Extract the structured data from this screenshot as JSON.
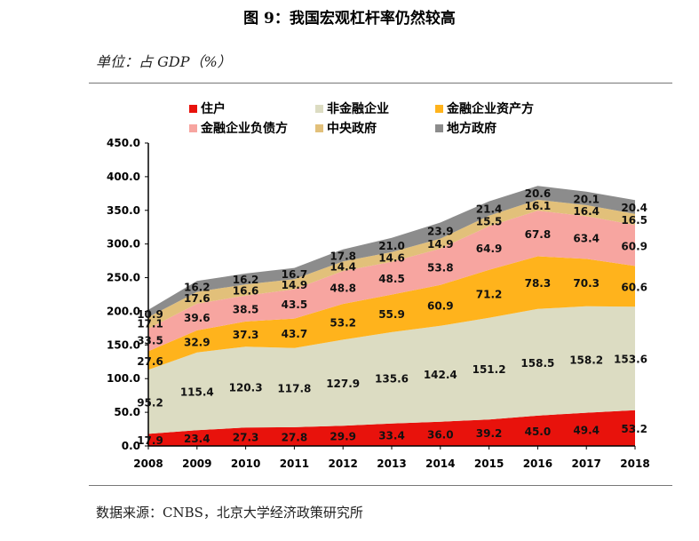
{
  "figure_title": "图 9：我国宏观杠杆率仍然较高",
  "unit_label": "单位：占 GDP（%）",
  "source_label": "数据来源：CNBS，北京大学经济政策研究所",
  "colors": {
    "households": "#e8120c",
    "nonfinancial_corporates": "#dcdcc2",
    "financial_assets": "#ffb31c",
    "financial_liabilities": "#f7a5a0",
    "central_gov": "#e2c07a",
    "local_gov": "#8c8c8c"
  },
  "chart_data": {
    "type": "area",
    "stacked": true,
    "title": "图 9：我国宏观杠杆率仍然较高",
    "ylabel": "单位：占 GDP（%）",
    "xlabel": "",
    "ylim": [
      0,
      450
    ],
    "yticks": [
      "0.0",
      "50.0",
      "100.0",
      "150.0",
      "200.0",
      "250.0",
      "300.0",
      "350.0",
      "400.0",
      "450.0"
    ],
    "x": [
      "2008",
      "2009",
      "2010",
      "2011",
      "2012",
      "2013",
      "2014",
      "2015",
      "2016",
      "2017",
      "2018"
    ],
    "legend_position": "top",
    "series": [
      {
        "name": "住户",
        "key": "households",
        "values": [
          17.9,
          23.4,
          27.3,
          27.8,
          29.9,
          33.4,
          36.0,
          39.2,
          45.0,
          49.4,
          53.2
        ],
        "labels": [
          "17.9",
          "23.4",
          "27.3",
          "27.8",
          "29.9",
          "33.4",
          "36.0",
          "39.2",
          "45.0",
          "49.4",
          "53.2"
        ]
      },
      {
        "name": "非金融企业",
        "key": "nonfinancial_corporates",
        "values": [
          95.2,
          115.4,
          120.3,
          117.8,
          127.9,
          135.6,
          142.4,
          151.2,
          158.5,
          158.2,
          153.6
        ],
        "labels": [
          "95.2",
          "115.4",
          "120.3",
          "117.8",
          "127.9",
          "135.6",
          "142.4",
          "151.2",
          "158.5",
          "158.2",
          "153.6"
        ]
      },
      {
        "name": "金融企业资产方",
        "key": "financial_assets",
        "values": [
          27.6,
          32.9,
          37.3,
          43.7,
          53.2,
          55.9,
          60.9,
          71.2,
          78.3,
          70.3,
          60.6
        ],
        "labels": [
          "27.6",
          "32.9",
          "37.3",
          "43.7",
          "53.2",
          "55.9",
          "60.9",
          "71.2",
          "78.3",
          "70.3",
          "60.6"
        ]
      },
      {
        "name": "金融企业负债方",
        "key": "financial_liabilities",
        "values": [
          33.5,
          39.6,
          38.5,
          43.5,
          48.8,
          48.5,
          53.8,
          64.9,
          67.8,
          63.4,
          60.9
        ],
        "labels": [
          "33.5",
          "39.6",
          "38.5",
          "43.5",
          "48.8",
          "48.5",
          "53.8",
          "64.9",
          "67.8",
          "63.4",
          "60.9"
        ]
      },
      {
        "name": "中央政府",
        "key": "central_gov",
        "values": [
          17.1,
          17.6,
          16.6,
          14.9,
          14.4,
          14.6,
          14.9,
          15.5,
          16.1,
          16.4,
          16.5
        ],
        "labels": [
          "17.1",
          "17.6",
          "16.6",
          "14.9",
          "14.4",
          "14.6",
          "14.9",
          "15.5",
          "16.1",
          "16.4",
          "16.5"
        ]
      },
      {
        "name": "地方政府",
        "key": "local_gov",
        "values": [
          10.9,
          16.2,
          16.2,
          16.7,
          17.8,
          21.0,
          23.9,
          21.4,
          20.6,
          20.1,
          20.4
        ],
        "labels": [
          "10.9",
          "16.2",
          "16.2",
          "16.7",
          "17.8",
          "21.0",
          "23.9",
          "21.4",
          "20.6",
          "20.1",
          "20.4"
        ]
      }
    ]
  }
}
